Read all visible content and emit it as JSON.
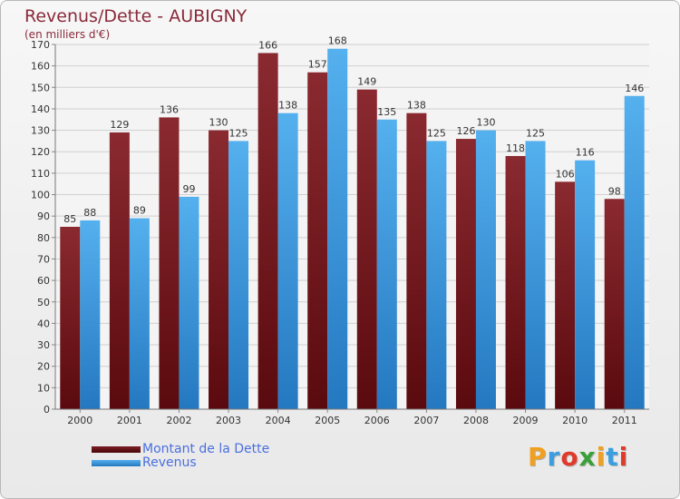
{
  "title": "Revenus/Dette - AUBIGNY",
  "subtitle": "(en milliers d'€)",
  "brand": "Proxiti",
  "brand_colors": [
    "#f0a020",
    "#3a9ee0",
    "#e03a2a",
    "#3aa03a",
    "#f0a020",
    "#3a9ee0",
    "#e03a2a"
  ],
  "chart_data": {
    "type": "bar",
    "categories": [
      "2000",
      "2001",
      "2002",
      "2003",
      "2004",
      "2005",
      "2006",
      "2007",
      "2008",
      "2009",
      "2010",
      "2011"
    ],
    "series": [
      {
        "name": "Montant de la Dette",
        "color": "#7a1e24",
        "values": [
          85,
          129,
          136,
          130,
          166,
          157,
          149,
          138,
          126,
          118,
          106,
          98
        ]
      },
      {
        "name": "Revenus",
        "color": "#3a98de",
        "values": [
          88,
          89,
          99,
          125,
          138,
          168,
          135,
          125,
          130,
          125,
          116,
          146
        ]
      }
    ],
    "yticks": [
      0,
      10,
      20,
      30,
      40,
      50,
      60,
      70,
      80,
      90,
      100,
      110,
      120,
      130,
      140,
      150,
      160,
      170
    ],
    "ylim": [
      0,
      170
    ],
    "grid": true,
    "legend_position": "bottom-left"
  }
}
